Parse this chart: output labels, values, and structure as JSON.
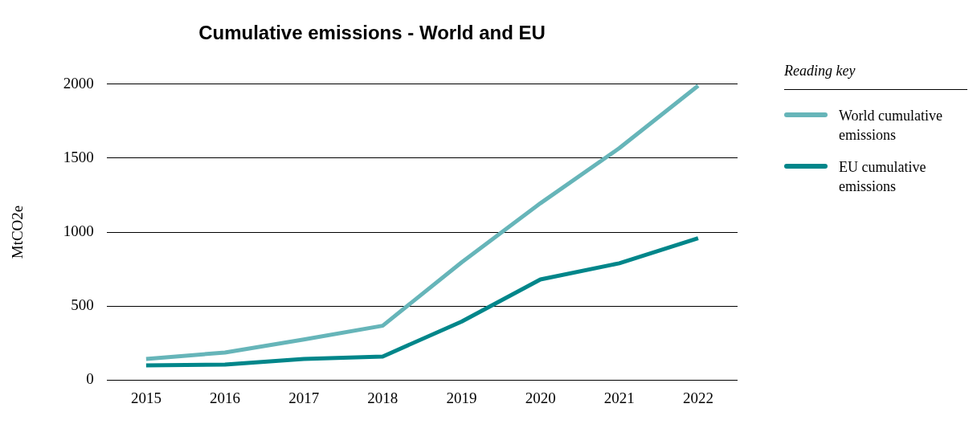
{
  "chart_data": {
    "type": "line",
    "title": "Cumulative emissions - World and EU",
    "ylabel": "MtCO2e",
    "legend_title": "Reading key",
    "categories": [
      "2015",
      "2016",
      "2017",
      "2018",
      "2019",
      "2020",
      "2021",
      "2022"
    ],
    "series": [
      {
        "name": "World cumulative emissions",
        "color": "#66b5b9",
        "values": [
          142,
          186,
          274,
          367,
          795,
          1195,
          1567,
          1989
        ]
      },
      {
        "name": "EU cumulative emissions",
        "color": "#00868a",
        "values": [
          99,
          104,
          142,
          159,
          395,
          680,
          789,
          959
        ]
      }
    ],
    "ylim": [
      0,
      2000
    ],
    "yticks": [
      0,
      500,
      1000,
      1500,
      2000
    ],
    "grid": "y",
    "legend": "right",
    "marker": "none",
    "line_style": "solid"
  }
}
